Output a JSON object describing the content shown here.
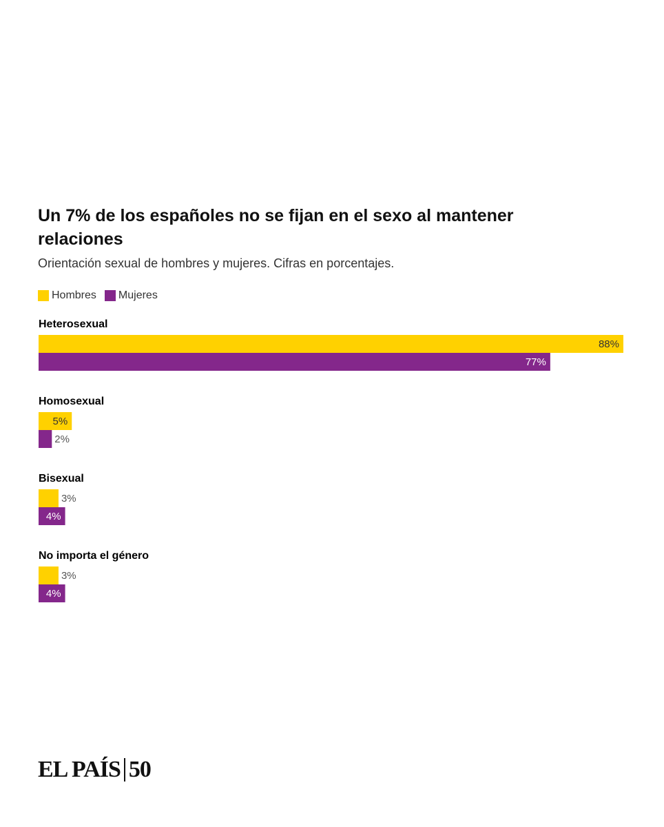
{
  "chart_data": {
    "type": "bar",
    "orientation": "horizontal",
    "title": "Un 7% de los españoles no se fijan en el sexo al mantener relaciones",
    "subtitle": "Orientación sexual de hombres y mujeres. Cifras en porcentajes.",
    "categories": [
      "Heterosexual",
      "Homosexual",
      "Bisexual",
      "No importa el género"
    ],
    "series": [
      {
        "name": "Hombres",
        "color": "#ffd100",
        "values": [
          88,
          5,
          3,
          3
        ],
        "value_labels": [
          "88%",
          "5%",
          "3%",
          "3%"
        ]
      },
      {
        "name": "Mujeres",
        "color": "#84278b",
        "values": [
          77,
          2,
          4,
          4
        ],
        "value_labels": [
          "77%",
          "2%",
          "4%",
          "4%"
        ]
      }
    ]
  },
  "footer": {
    "brand": "EL PAÍS",
    "anniversary": "50"
  }
}
